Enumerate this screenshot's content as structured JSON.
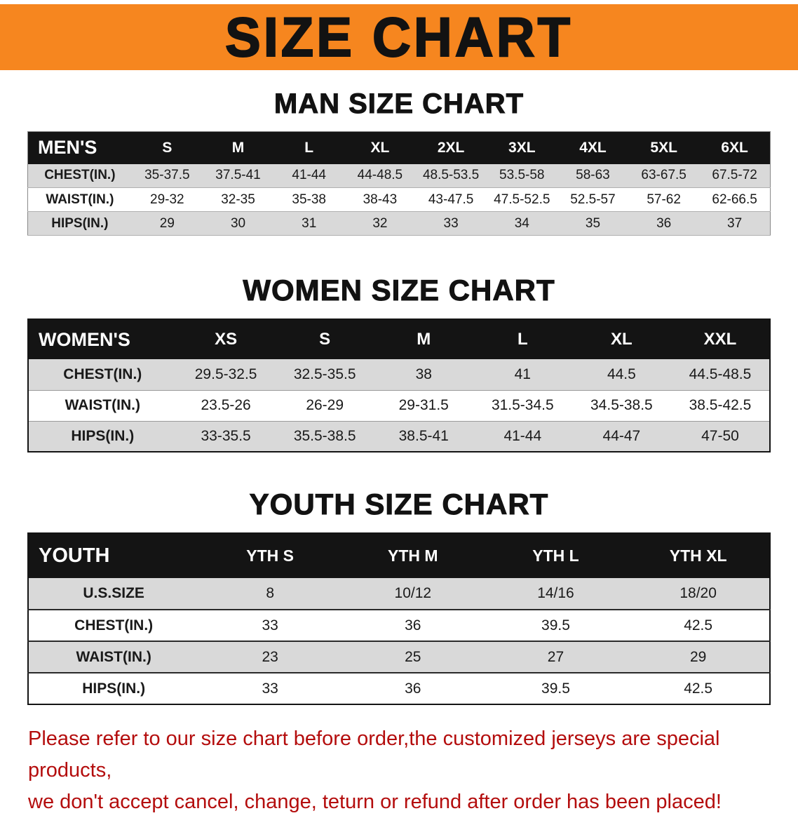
{
  "banner": {
    "title": "SIZE CHART"
  },
  "colors": {
    "banner_bg": "#f6861f",
    "table_header_bg": "#141414",
    "row_alt_bg": "#d9d9d9",
    "note_text": "#b40d0d"
  },
  "sections": {
    "men": {
      "heading": "MAN SIZE CHART"
    },
    "women": {
      "heading": "WOMEN SIZE CHART"
    },
    "youth": {
      "heading": "YOUTH SIZE CHART"
    }
  },
  "chart_data": [
    {
      "type": "table",
      "title": "MAN SIZE CHART",
      "header": [
        "MEN'S",
        "S",
        "M",
        "L",
        "XL",
        "2XL",
        "3XL",
        "4XL",
        "5XL",
        "6XL"
      ],
      "rows": [
        [
          "CHEST(IN.)",
          "35-37.5",
          "37.5-41",
          "41-44",
          "44-48.5",
          "48.5-53.5",
          "53.5-58",
          "58-63",
          "63-67.5",
          "67.5-72"
        ],
        [
          "WAIST(IN.)",
          "29-32",
          "32-35",
          "35-38",
          "38-43",
          "43-47.5",
          "47.5-52.5",
          "52.5-57",
          "57-62",
          "62-66.5"
        ],
        [
          "HIPS(IN.)",
          "29",
          "30",
          "31",
          "32",
          "33",
          "34",
          "35",
          "36",
          "37"
        ]
      ]
    },
    {
      "type": "table",
      "title": "WOMEN SIZE CHART",
      "header": [
        "WOMEN'S",
        "XS",
        "S",
        "M",
        "L",
        "XL",
        "XXL"
      ],
      "rows": [
        [
          "CHEST(IN.)",
          "29.5-32.5",
          "32.5-35.5",
          "38",
          "41",
          "44.5",
          "44.5-48.5"
        ],
        [
          "WAIST(IN.)",
          "23.5-26",
          "26-29",
          "29-31.5",
          "31.5-34.5",
          "34.5-38.5",
          "38.5-42.5"
        ],
        [
          "HIPS(IN.)",
          "33-35.5",
          "35.5-38.5",
          "38.5-41",
          "41-44",
          "44-47",
          "47-50"
        ]
      ]
    },
    {
      "type": "table",
      "title": "YOUTH SIZE CHART",
      "header": [
        "YOUTH",
        "YTH S",
        "YTH M",
        "YTH L",
        "YTH XL"
      ],
      "rows": [
        [
          "U.S.SIZE",
          "8",
          "10/12",
          "14/16",
          "18/20"
        ],
        [
          "CHEST(IN.)",
          "33",
          "36",
          "39.5",
          "42.5"
        ],
        [
          "WAIST(IN.)",
          "23",
          "25",
          "27",
          "29"
        ],
        [
          "HIPS(IN.)",
          "33",
          "36",
          "39.5",
          "42.5"
        ]
      ]
    }
  ],
  "note": {
    "line1": "Please refer to our size chart before order,the customized jerseys are special products,",
    "line2": "we don't accept cancel, change, teturn or refund after order has been placed!"
  }
}
